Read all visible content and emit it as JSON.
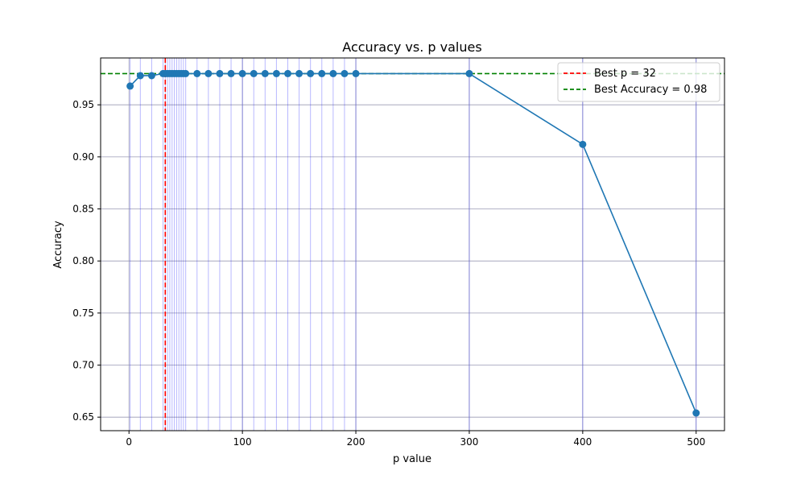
{
  "chart_data": {
    "type": "line",
    "title": "Accuracy vs. p values",
    "xlabel": "p value",
    "ylabel": "Accuracy",
    "xlim": [
      -25,
      525
    ],
    "ylim": [
      0.637,
      0.995
    ],
    "xticks": [
      0,
      100,
      200,
      300,
      400,
      500
    ],
    "yticks": [
      0.65,
      0.7,
      0.75,
      0.8,
      0.85,
      0.9,
      0.95
    ],
    "ytick_labels": [
      "0.65",
      "0.70",
      "0.75",
      "0.80",
      "0.85",
      "0.90",
      "0.95"
    ],
    "grid": true,
    "series": [
      {
        "x": [
          1,
          10,
          20,
          30,
          32,
          34,
          36,
          38,
          40,
          42,
          44,
          46,
          48,
          50,
          60,
          70,
          80,
          90,
          100,
          110,
          120,
          130,
          140,
          150,
          160,
          170,
          180,
          190,
          200,
          300,
          400,
          500
        ],
        "values": [
          0.968,
          0.978,
          0.978,
          0.98,
          0.98,
          0.98,
          0.98,
          0.98,
          0.98,
          0.98,
          0.98,
          0.98,
          0.98,
          0.98,
          0.98,
          0.98,
          0.98,
          0.98,
          0.98,
          0.98,
          0.98,
          0.98,
          0.98,
          0.98,
          0.98,
          0.98,
          0.98,
          0.98,
          0.98,
          0.98,
          0.912,
          0.654
        ],
        "color": "#1f77b4",
        "marker": "circle"
      }
    ],
    "best_p": 32,
    "best_accuracy": 0.98,
    "reference_line_color_vertical": "#ff0000",
    "reference_line_color_horizontal": "#008000",
    "guide_line_color": "#0000ff",
    "legend": {
      "placement": "top-right",
      "entries": [
        {
          "label": "Best p = 32",
          "color": "#ff0000",
          "style": "dashed"
        },
        {
          "label": "Best Accuracy = 0.98",
          "color": "#008000",
          "style": "dashed"
        }
      ]
    }
  }
}
